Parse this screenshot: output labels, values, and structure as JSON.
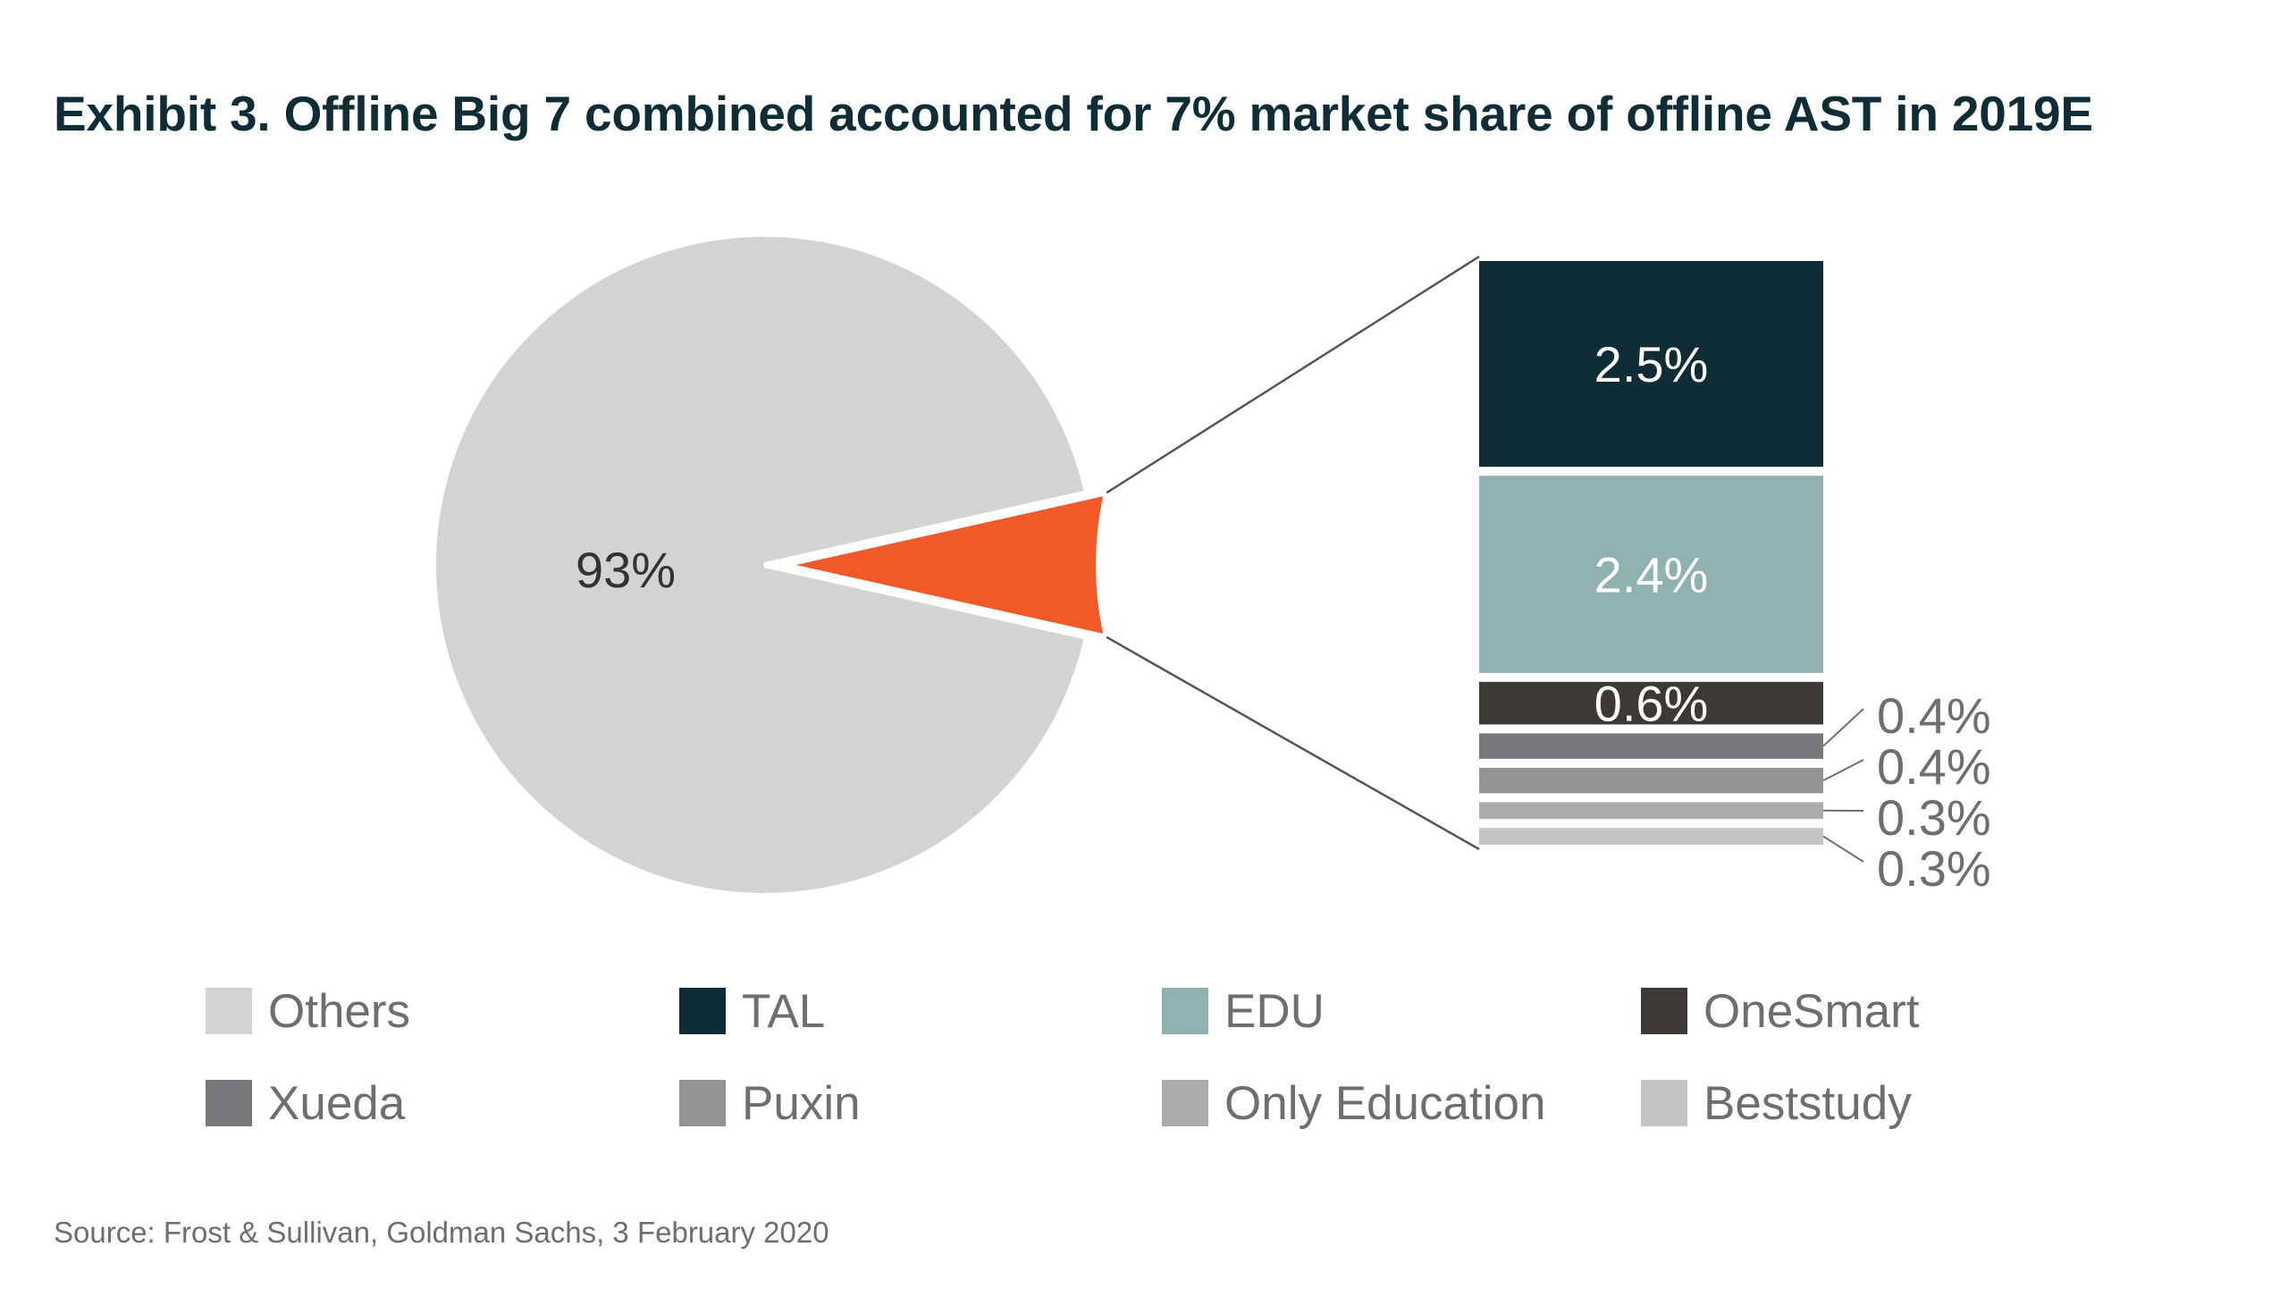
{
  "title": "Exhibit 3. Offline Big 7 combined accounted for 7% market share of offline AST in 2019E",
  "source": "Source: Frost & Sullivan, Goldman Sachs, 3 February 2020",
  "chart_data": {
    "type": "pie",
    "pie": {
      "slices": [
        {
          "name": "Others",
          "value": 93,
          "label": "93%",
          "color": "#d3d3d2"
        },
        {
          "name": "Offline Big 7",
          "value": 7,
          "label": "",
          "color": "#f05a28"
        }
      ]
    },
    "breakdown": {
      "type": "bar",
      "stacked": true,
      "series": [
        {
          "name": "TAL",
          "value": 2.5,
          "label": "2.5%",
          "color": "#0f2d37"
        },
        {
          "name": "EDU",
          "value": 2.4,
          "label": "2.4%",
          "color": "#8fb1b1"
        },
        {
          "name": "OneSmart",
          "value": 0.6,
          "label": "0.6%",
          "color": "#3d3935"
        },
        {
          "name": "Xueda",
          "value": 0.4,
          "label": "0.4%",
          "color": "#77787b"
        },
        {
          "name": "Puxin",
          "value": 0.4,
          "label": "0.4%",
          "color": "#939393"
        },
        {
          "name": "Only Education",
          "value": 0.3,
          "label": "0.3%",
          "color": "#ababab"
        },
        {
          "name": "Beststudy",
          "value": 0.3,
          "label": "0.3%",
          "color": "#c4c4c3"
        }
      ]
    },
    "legend": {
      "placement": "bottom",
      "items": [
        {
          "name": "Others",
          "color": "#d3d3d2"
        },
        {
          "name": "TAL",
          "color": "#0f2d37"
        },
        {
          "name": "EDU",
          "color": "#8fb1b1"
        },
        {
          "name": "OneSmart",
          "color": "#3d3935"
        },
        {
          "name": "Xueda",
          "color": "#77787b"
        },
        {
          "name": "Puxin",
          "color": "#939393"
        },
        {
          "name": "Only Education",
          "color": "#ababab"
        },
        {
          "name": "Beststudy",
          "color": "#c4c4c3"
        }
      ]
    }
  }
}
